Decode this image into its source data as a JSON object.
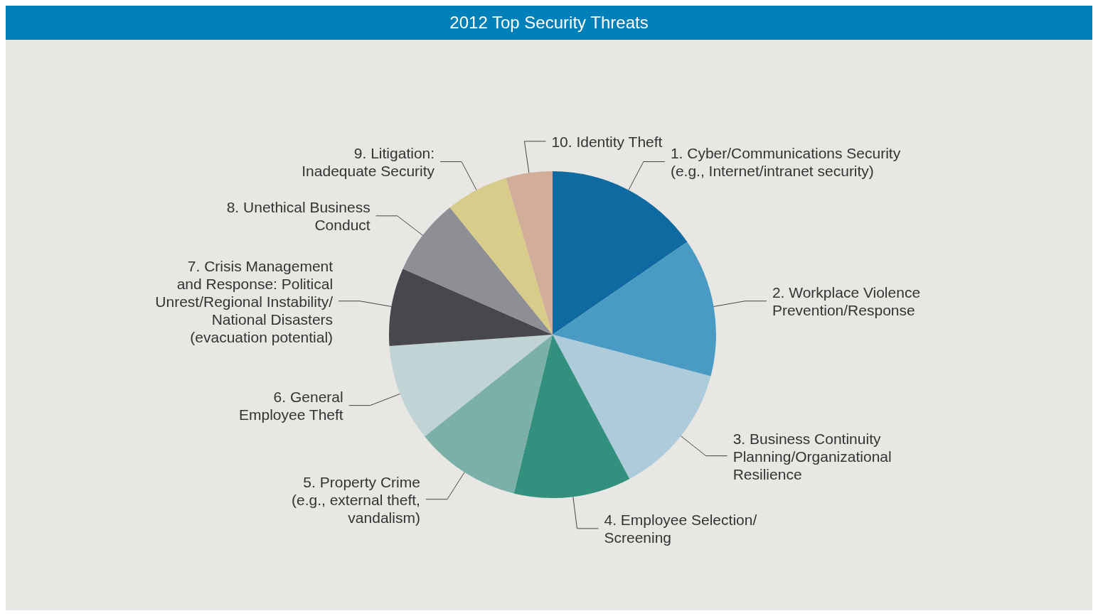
{
  "chart_data": {
    "type": "pie",
    "title": "2012 Top Security Threats",
    "categories": [
      "1. Cyber/Communications Security\n(e.g., Internet/intranet security)",
      "2. Workplace Violence\nPrevention/Response",
      "3. Business Continuity\nPlanning/Organizational\nResilience",
      "4. Employee Selection/\nScreening",
      "5. Property Crime\n(e.g., external theft,\nvandalism)",
      "6. General\nEmployee Theft",
      "7. Crisis Management\nand Response: Political\nUnrest/Regional Instability/\nNational Disasters\n(evacuation potential)",
      "8. Unethical Business\nConduct",
      "9. Litigation:\nInadequate Security",
      "10. Identity Theft"
    ],
    "values": [
      15.4,
      13.7,
      13.1,
      11.6,
      10.5,
      9.6,
      7.7,
      7.6,
      6.2,
      4.6
    ],
    "colors": [
      "#0e6aa0",
      "#4a9bc4",
      "#aecbdc",
      "#33907f",
      "#7ab0a8",
      "#c0d4d5",
      "#48474d",
      "#8e8f94",
      "#d8cc8a",
      "#d2ae98"
    ],
    "legend": false
  }
}
